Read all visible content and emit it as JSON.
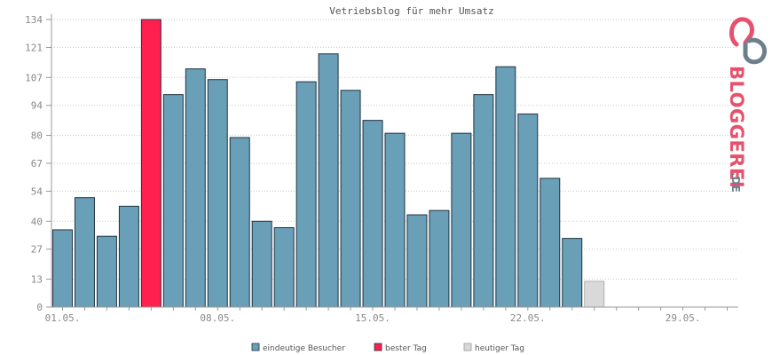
{
  "colors": {
    "visitors": "#6a9fb8",
    "best_day": "#ff2050",
    "today": "#d9d9d9",
    "bar_stroke": "#1f3340",
    "grid": "#c8c8c8",
    "axis": "#999999",
    "brand_main": "#e6526e",
    "brand_accent": "#6d7f8c"
  },
  "chart_data": {
    "type": "bar",
    "title": "Vetriebsblog für mehr Umsatz",
    "ylim": [
      0,
      140
    ],
    "y_ticks": [
      0,
      13,
      27,
      40,
      54,
      67,
      80,
      94,
      107,
      121,
      134
    ],
    "grid": "horizontal",
    "legend_position": "bottom-center",
    "days": 31,
    "x_tick_labels": [
      {
        "day": 1,
        "label": "01.05."
      },
      {
        "day": 8,
        "label": "08.05."
      },
      {
        "day": 15,
        "label": "15.05."
      },
      {
        "day": 22,
        "label": "22.05."
      },
      {
        "day": 29,
        "label": "29.05."
      }
    ],
    "values": [
      36,
      51,
      33,
      47,
      134,
      99,
      111,
      106,
      79,
      40,
      37,
      105,
      118,
      101,
      87,
      81,
      43,
      45,
      81,
      99,
      112,
      90,
      60,
      32,
      12
    ],
    "best_day": 5,
    "today": 25,
    "legend": [
      {
        "key": "visitors",
        "label": "eindeutige Besucher"
      },
      {
        "key": "best_day",
        "label": "bester Tag"
      },
      {
        "key": "today",
        "label": "heutiger Tag"
      }
    ]
  },
  "brand": {
    "name": "BLOGGEREI",
    "tld": ".DE"
  }
}
